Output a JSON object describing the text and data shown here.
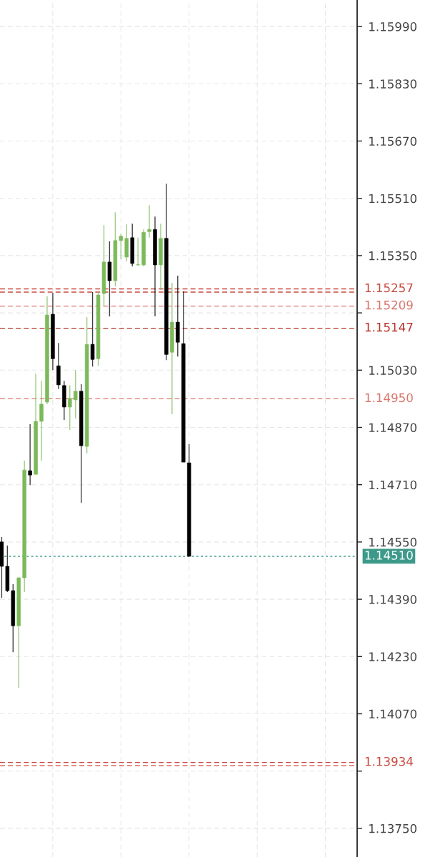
{
  "chart_data": {
    "type": "candlestick",
    "categories": [
      null,
      null,
      null,
      null,
      null,
      null,
      null,
      null,
      null,
      null,
      null,
      null,
      null,
      null,
      null,
      null,
      null,
      null,
      null,
      null,
      null,
      null,
      null,
      null,
      null,
      null,
      null,
      null,
      null,
      null,
      null,
      null,
      null,
      null,
      null,
      null,
      null,
      null,
      null,
      null,
      null,
      null,
      null,
      null,
      null,
      null,
      null,
      null,
      null,
      null,
      null,
      null,
      null,
      null,
      null,
      null,
      null,
      null,
      null,
      null,
      null,
      null,
      null
    ],
    "ohlc": [
      [
        1.1455,
        1.14564,
        1.14394,
        1.14482
      ],
      [
        1.14482,
        1.1454,
        1.1441,
        1.14414
      ],
      [
        1.14414,
        1.14432,
        1.14242,
        1.14316
      ],
      [
        1.14316,
        1.1445,
        1.14143,
        1.1445
      ],
      [
        1.1445,
        1.14777,
        1.1441,
        1.14751
      ],
      [
        1.14749,
        1.14879,
        1.14709,
        1.14737
      ],
      [
        1.14739,
        1.1502,
        1.14739,
        1.14887
      ],
      [
        1.14887,
        1.15,
        1.14777,
        1.14935
      ],
      [
        1.14941,
        1.15236,
        1.14935,
        1.15184
      ],
      [
        1.15186,
        1.15246,
        1.1503,
        1.15062
      ],
      [
        1.15042,
        1.15106,
        1.14977,
        1.14989
      ],
      [
        1.14987,
        1.15,
        1.14891,
        1.14927
      ],
      [
        1.14927,
        1.14987,
        1.14863,
        1.14951
      ],
      [
        1.14947,
        1.1503,
        1.14895,
        1.14971
      ],
      [
        1.14971,
        1.14991,
        1.14659,
        1.14819
      ],
      [
        1.14817,
        1.15178,
        1.14797,
        1.15102
      ],
      [
        1.15102,
        1.15248,
        1.1504,
        1.1506
      ],
      [
        1.15062,
        1.15248,
        1.15042,
        1.1524
      ],
      [
        1.15244,
        1.15435,
        1.1521,
        1.15332
      ],
      [
        1.15332,
        1.1539,
        1.1518,
        1.1528
      ],
      [
        1.1528,
        1.15471,
        1.15264,
        1.15392
      ],
      [
        1.15392,
        1.15411,
        1.1534,
        1.15404
      ],
      [
        1.15346,
        1.15437,
        1.15334,
        1.15398
      ],
      [
        1.154,
        1.15439,
        1.1532,
        1.15328
      ],
      [
        1.15324,
        1.154,
        1.15322,
        1.15324
      ],
      [
        1.15324,
        1.15423,
        1.1532,
        1.15415
      ],
      [
        1.15417,
        1.15491,
        1.154,
        1.15423
      ],
      [
        1.15423,
        1.15459,
        1.1518,
        1.15324
      ],
      [
        1.15324,
        1.15439,
        1.15254,
        1.15398
      ],
      [
        1.15398,
        1.15551,
        1.15058,
        1.15074
      ],
      [
        1.1508,
        1.15274,
        1.14907,
        1.15164
      ],
      [
        1.15164,
        1.15294,
        1.15068,
        1.15108
      ],
      [
        1.15104,
        1.1525,
        1.14773,
        1.14773
      ],
      [
        1.14771,
        1.14823,
        1.1451,
        1.1451
      ],
      null,
      null,
      null,
      null,
      null,
      null,
      null,
      null,
      null,
      null,
      null,
      null,
      null,
      null,
      null,
      null,
      null,
      null,
      null,
      null,
      null,
      null,
      null,
      null,
      null,
      null,
      null,
      null,
      null
    ],
    "colors": [
      "#000000",
      "#000000",
      "#000000",
      "#7cb95a",
      "#7cb95a",
      "#000000",
      "#7cb95a",
      "#7cb95a",
      "#7cb95a",
      "#000000",
      "#000000",
      "#000000",
      "#7cb95a",
      "#7cb95a",
      "#000000",
      "#7cb95a",
      "#000000",
      "#7cb95a",
      "#7cb95a",
      "#000000",
      "#7cb95a",
      "#7cb95a",
      "#7cb95a",
      "#000000",
      "#7cb95a",
      "#7cb95a",
      "#7cb95a",
      "#000000",
      "#7cb95a",
      "#000000",
      "#7cb95a",
      "#000000",
      "#000000",
      "#000000",
      null,
      null,
      null,
      null,
      null,
      null,
      null,
      null,
      null,
      null,
      null,
      null,
      null,
      null,
      null,
      null,
      null,
      null,
      null,
      null,
      null,
      null,
      null,
      null,
      null,
      null,
      null,
      null,
      null
    ],
    "ylim": [
      1.1367,
      1.16064
    ],
    "yticks": [
      {
        "value": 1.1375,
        "label": "1.13750"
      },
      {
        "value": 1.1391,
        "label": null
      },
      {
        "value": 1.1407,
        "label": "1.14070"
      },
      {
        "value": 1.1423,
        "label": "1.14230"
      },
      {
        "value": 1.1439,
        "label": "1.14390"
      },
      {
        "value": 1.1455,
        "label": "1.14550"
      },
      {
        "value": 1.1471,
        "label": "1.14710"
      },
      {
        "value": 1.1487,
        "label": "1.14870"
      },
      {
        "value": 1.1503,
        "label": "1.15030"
      },
      {
        "value": 1.1519,
        "label": null
      },
      {
        "value": 1.1535,
        "label": "1.15350"
      },
      {
        "value": 1.1551,
        "label": "1.15510"
      },
      {
        "value": 1.1567,
        "label": "1.15670"
      },
      {
        "value": 1.1583,
        "label": "1.15830"
      },
      {
        "value": 1.1599,
        "label": "1.15990"
      }
    ],
    "ref_lines": [
      {
        "axis": "y",
        "value": 1.15257,
        "label": "1.15257",
        "color": "#c94a3f",
        "line_style": "dashed"
      },
      {
        "axis": "y",
        "value": 1.15248,
        "label": null,
        "color": "#c94a3f",
        "line_style": "dashed"
      },
      {
        "axis": "y",
        "value": 1.15209,
        "label": "1.15209",
        "color": "#d9756b",
        "line_style": "dashed"
      },
      {
        "axis": "y",
        "value": 1.15147,
        "label": "1.15147",
        "color": "#b8352b",
        "line_style": "dashed"
      },
      {
        "axis": "y",
        "value": 1.1495,
        "label": "1.14950",
        "color": "#d9756b",
        "line_style": "dashed"
      },
      {
        "axis": "y",
        "value": 1.1451,
        "label": "1.14510",
        "color": "#3d9a8b",
        "line_style": "dotted"
      },
      {
        "axis": "y",
        "value": 1.13934,
        "label": "1.13934",
        "color": "#c94a3f",
        "line_style": "dashed"
      },
      {
        "axis": "y",
        "value": 1.13925,
        "label": null,
        "color": "#c94a3f",
        "line_style": "dashed"
      }
    ],
    "grid": true,
    "tick_labels": "y"
  }
}
